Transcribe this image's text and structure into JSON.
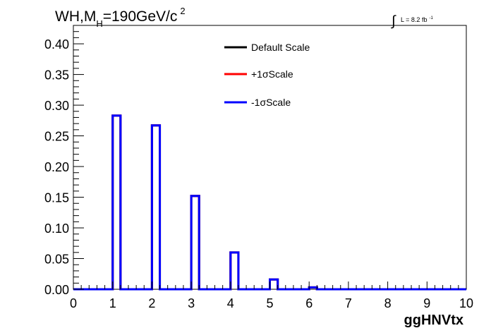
{
  "title": {
    "main": "WH,M",
    "sub": "H",
    "rest": "=190GeV/c",
    "sup": "2"
  },
  "lumi": {
    "integral": "∫",
    "label": "L = 8.2 fb",
    "sup": "-1"
  },
  "chart_data": {
    "type": "histogram",
    "xlabel": "ggHNVtx",
    "ylabel": "",
    "xlim": [
      0,
      10
    ],
    "ylim": [
      0,
      0.43
    ],
    "x_ticks": [
      "0",
      "1",
      "2",
      "3",
      "4",
      "5",
      "6",
      "7",
      "8",
      "9",
      "10"
    ],
    "y_ticks": [
      "0.00",
      "0.05",
      "0.10",
      "0.15",
      "0.20",
      "0.25",
      "0.30",
      "0.35",
      "0.40"
    ],
    "bin_width": 0.2,
    "bins": [
      {
        "x_low": 1.0,
        "value": 0.283
      },
      {
        "x_low": 2.0,
        "value": 0.267
      },
      {
        "x_low": 3.0,
        "value": 0.152
      },
      {
        "x_low": 4.0,
        "value": 0.06
      },
      {
        "x_low": 5.0,
        "value": 0.016
      },
      {
        "x_low": 6.0,
        "value": 0.003
      }
    ],
    "series": [
      {
        "name": "Default Scale",
        "color": "#000000"
      },
      {
        "name": "+1σScale",
        "color": "#ff0000"
      },
      {
        "name": "-1σScale",
        "color": "#0000ff"
      }
    ],
    "legend_position": "top-right",
    "grid": false
  }
}
